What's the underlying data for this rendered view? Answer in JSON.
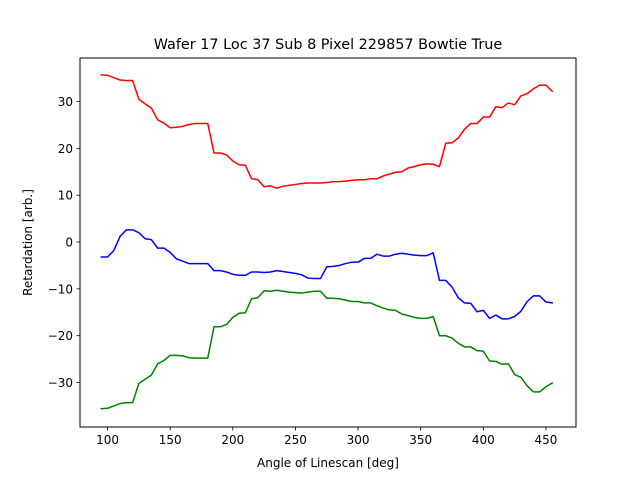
{
  "chart_data": {
    "type": "line",
    "title": "Wafer 17 Loc 37 Sub 8 Pixel 229857 Bowtie True",
    "xlabel": "Angle of Linescan [deg]",
    "ylabel": "Retardation [arb.]",
    "xlim": [
      78,
      474
    ],
    "ylim": [
      -39.5,
      39.3
    ],
    "xticks": [
      100,
      150,
      200,
      250,
      300,
      350,
      400,
      450
    ],
    "yticks": [
      -30,
      -20,
      -10,
      0,
      10,
      20,
      30
    ],
    "x": [
      95,
      100,
      105,
      110,
      115,
      120,
      125,
      130,
      135,
      140,
      145,
      150,
      155,
      160,
      165,
      170,
      175,
      180,
      185,
      190,
      195,
      200,
      205,
      210,
      215,
      220,
      225,
      230,
      235,
      240,
      245,
      250,
      255,
      260,
      265,
      270,
      275,
      280,
      285,
      290,
      295,
      300,
      305,
      310,
      315,
      320,
      325,
      330,
      335,
      340,
      345,
      350,
      355,
      360,
      365,
      370,
      375,
      380,
      385,
      390,
      395,
      400,
      405,
      410,
      415,
      420,
      425,
      430,
      435,
      440,
      445,
      450,
      455
    ],
    "series": [
      {
        "name": "red",
        "color": "#ff0000",
        "values": [
          35.7,
          35.6,
          35.1,
          34.6,
          34.5,
          34.5,
          30.5,
          29.5,
          28.6,
          26.1,
          25.4,
          24.4,
          24.5,
          24.7,
          25.1,
          25.3,
          25.3,
          25.3,
          19.0,
          19.0,
          18.6,
          17.3,
          16.5,
          16.4,
          13.5,
          13.3,
          11.8,
          12.0,
          11.5,
          11.9,
          12.1,
          12.3,
          12.5,
          12.6,
          12.6,
          12.6,
          12.7,
          12.9,
          12.9,
          13.0,
          13.2,
          13.3,
          13.3,
          13.5,
          13.5,
          14.1,
          14.5,
          14.9,
          15.0,
          15.8,
          16.1,
          16.5,
          16.7,
          16.6,
          16.1,
          21.1,
          21.2,
          22.2,
          24.1,
          25.3,
          25.3,
          26.7,
          26.7,
          28.9,
          28.7,
          29.7,
          29.3,
          31.2,
          31.7,
          32.7,
          33.5,
          33.5,
          32.2
        ]
      },
      {
        "name": "blue",
        "color": "#0000ff",
        "values": [
          -3.2,
          -3.2,
          -1.8,
          1.2,
          2.6,
          2.6,
          2.0,
          0.7,
          0.5,
          -1.3,
          -1.3,
          -2.2,
          -3.6,
          -4.1,
          -4.6,
          -4.6,
          -4.6,
          -4.6,
          -6.1,
          -6.1,
          -6.4,
          -6.9,
          -7.1,
          -7.1,
          -6.4,
          -6.4,
          -6.5,
          -6.4,
          -6.1,
          -6.3,
          -6.5,
          -6.7,
          -7.0,
          -7.7,
          -7.8,
          -7.8,
          -5.3,
          -5.2,
          -5.0,
          -4.6,
          -4.3,
          -4.3,
          -3.5,
          -3.5,
          -2.6,
          -3.0,
          -3.0,
          -2.6,
          -2.4,
          -2.6,
          -2.8,
          -2.9,
          -2.9,
          -2.3,
          -8.2,
          -8.2,
          -9.6,
          -11.9,
          -13.0,
          -13.1,
          -14.9,
          -14.6,
          -16.3,
          -15.6,
          -16.4,
          -16.4,
          -15.9,
          -14.8,
          -12.7,
          -11.5,
          -11.5,
          -12.8,
          -13.0
        ]
      },
      {
        "name": "green",
        "color": "#008000",
        "values": [
          -35.6,
          -35.5,
          -35.0,
          -34.5,
          -34.3,
          -34.3,
          -30.2,
          -29.3,
          -28.4,
          -26.0,
          -25.3,
          -24.2,
          -24.2,
          -24.3,
          -24.7,
          -24.8,
          -24.8,
          -24.8,
          -18.1,
          -18.1,
          -17.6,
          -16.1,
          -15.2,
          -15.1,
          -12.1,
          -11.9,
          -10.4,
          -10.5,
          -10.3,
          -10.5,
          -10.7,
          -10.8,
          -10.9,
          -10.7,
          -10.5,
          -10.5,
          -12.0,
          -12.0,
          -12.1,
          -12.4,
          -12.7,
          -12.7,
          -13.0,
          -13.0,
          -13.6,
          -14.1,
          -14.5,
          -14.6,
          -15.4,
          -15.7,
          -16.1,
          -16.3,
          -16.3,
          -15.9,
          -20.0,
          -20.0,
          -20.5,
          -21.6,
          -22.4,
          -22.4,
          -23.2,
          -23.3,
          -25.4,
          -25.5,
          -26.1,
          -26.0,
          -28.3,
          -28.9,
          -30.7,
          -32.0,
          -32.0,
          -30.9,
          -30.1
        ]
      }
    ]
  }
}
